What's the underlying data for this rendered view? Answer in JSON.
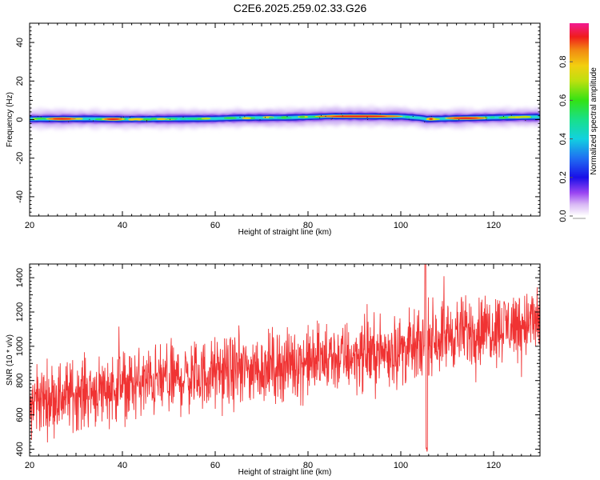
{
  "title": "C2E6.2025.259.02.33.G26",
  "colors": {
    "snr_line": "#f03333",
    "band_core": "#1a2bd6",
    "halo": "#c8a8f2"
  },
  "chart_data": [
    {
      "type": "heatmap",
      "title": "C2E6.2025.259.02.33.G26",
      "xlabel": "Height of straight line (km)",
      "ylabel": "Frequency (Hz)",
      "xlim": [
        20,
        130
      ],
      "ylim": [
        -50,
        50
      ],
      "xticks": [
        20,
        40,
        60,
        80,
        100,
        120
      ],
      "yticks": [
        -40,
        -20,
        0,
        20,
        40
      ],
      "colorbar": {
        "label": "Normalized spectral amplitude",
        "range": [
          0,
          1
        ],
        "ticks": [
          "0.0",
          "0.2",
          "0.4",
          "0.6",
          "0.8"
        ]
      },
      "band": {
        "center_hz": [
          [
            20,
            0.3
          ],
          [
            33,
            0.4
          ],
          [
            40,
            0.2
          ],
          [
            60,
            0.5
          ],
          [
            65,
            0.9
          ],
          [
            75,
            1.0
          ],
          [
            80,
            1.3
          ],
          [
            85,
            1.8
          ],
          [
            100,
            1.6
          ],
          [
            104.5,
            0.8
          ],
          [
            105.5,
            0.2
          ],
          [
            106,
            0.3
          ],
          [
            115,
            0.8
          ],
          [
            125,
            1.3
          ],
          [
            130,
            1.4
          ]
        ],
        "peak_regions_km": [
          [
            24,
            30
          ],
          [
            36,
            40
          ],
          [
            82,
            100
          ],
          [
            106,
            107
          ],
          [
            110,
            118
          ]
        ]
      }
    },
    {
      "type": "line",
      "xlabel": "Height of straight line (km)",
      "ylabel": "SNR (10 * v/v)",
      "xlim": [
        20,
        130
      ],
      "ylim": [
        360,
        1480
      ],
      "xticks": [
        20,
        40,
        60,
        80,
        100,
        120
      ],
      "yticks": [
        400,
        600,
        800,
        1000,
        1200,
        1400
      ],
      "trend": [
        [
          20,
          680
        ],
        [
          40,
          770
        ],
        [
          60,
          840
        ],
        [
          80,
          910
        ],
        [
          100,
          980
        ],
        [
          104.5,
          990
        ],
        [
          106,
          1050
        ],
        [
          120,
          1110
        ],
        [
          130,
          1150
        ]
      ],
      "annotations": [
        {
          "x": 105.3,
          "y": 1480,
          "note": "spike"
        },
        {
          "x": 105.6,
          "y": 375,
          "note": "dip"
        }
      ]
    }
  ]
}
